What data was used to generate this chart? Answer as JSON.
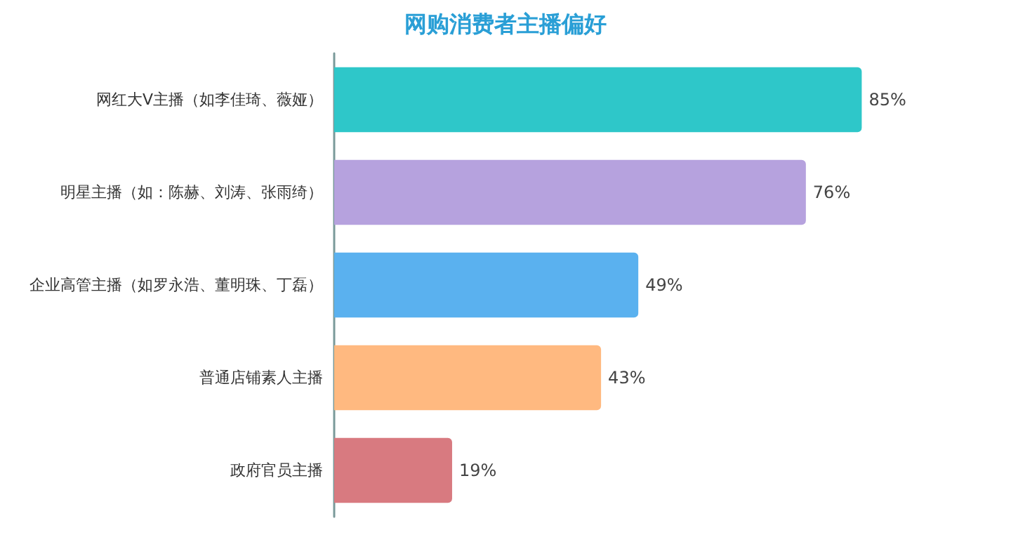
{
  "chart_data": {
    "type": "bar",
    "title": "网购消费者主播偏好",
    "orientation": "horizontal",
    "categories": [
      "网红大V主播（如李佳琦、薇娅）",
      "明星主播（如：陈赫、刘涛、张雨绮）",
      "企业高管主播（如罗永浩、董明珠、丁磊）",
      "普通店铺素人主播",
      "政府官员主播"
    ],
    "values": [
      85,
      76,
      49,
      43,
      19
    ],
    "value_labels": [
      "85%",
      "76%",
      "49%",
      "43%",
      "19%"
    ],
    "colors": [
      "#2ec7c9",
      "#b6a2de",
      "#5ab1ef",
      "#ffb980",
      "#d87a80"
    ]
  }
}
